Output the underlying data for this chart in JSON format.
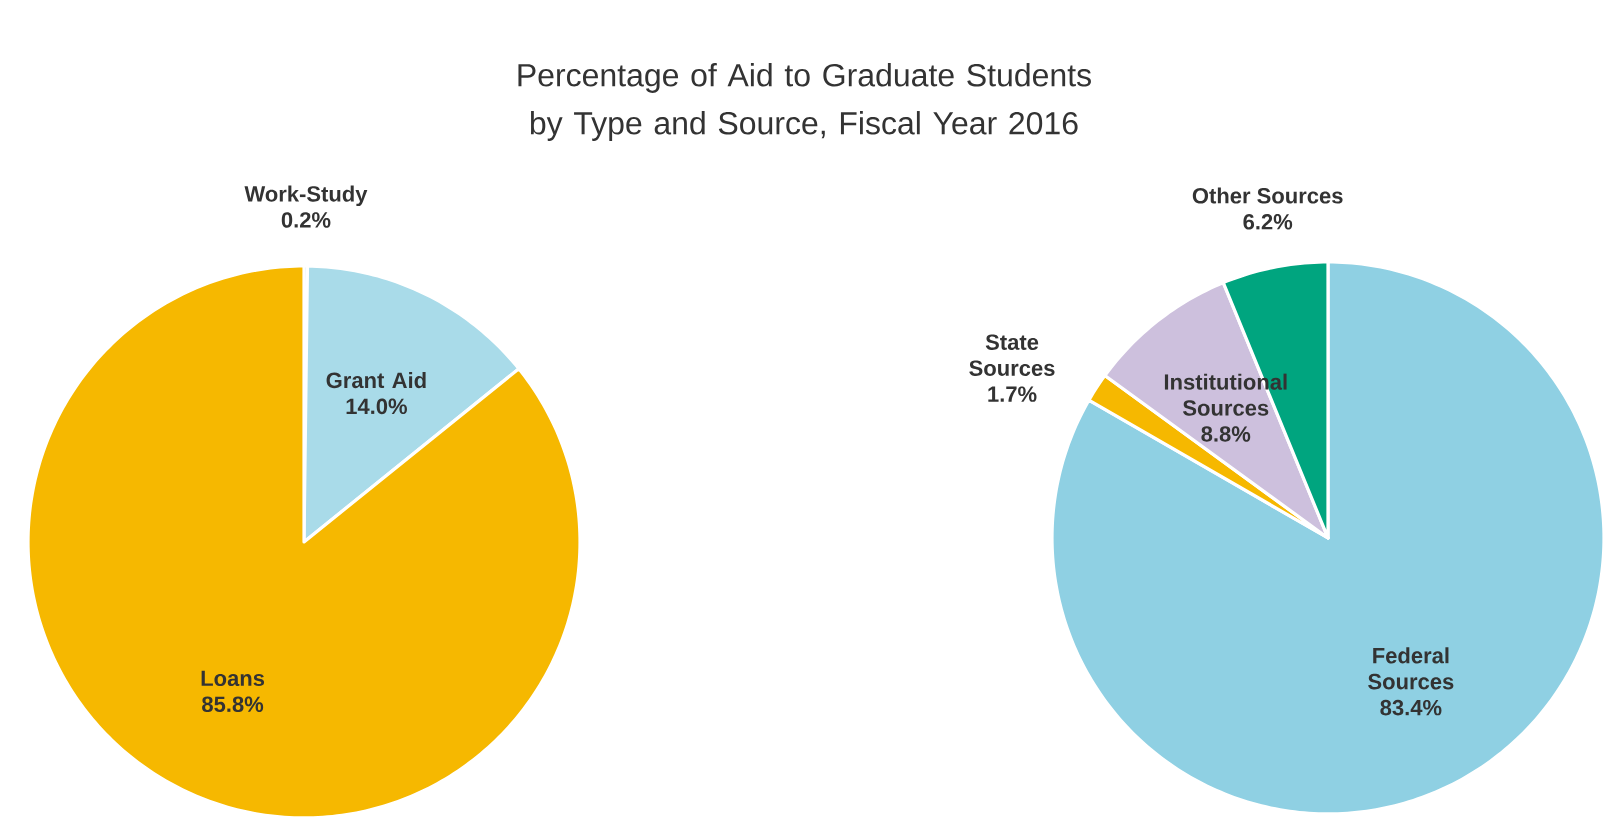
{
  "chart_data": [
    {
      "type": "pie",
      "title": "Percentage of Aid to Graduate Students by Type and Source, Fiscal Year 2016",
      "categories": [
        "Work-Study",
        "Grant Aid",
        "Loans"
      ],
      "values": [
        0.2,
        14.0,
        85.8
      ],
      "value_labels": [
        "0.2%",
        "14.0%",
        "85.8%"
      ],
      "colors": [
        "#4a8fb0",
        "#a9dbe9",
        "#f6b800"
      ]
    },
    {
      "type": "pie",
      "categories": [
        "Federal Sources",
        "State Sources",
        "Institutional Sources",
        "Other Sources"
      ],
      "values": [
        83.4,
        1.7,
        8.8,
        6.2
      ],
      "value_labels": [
        "83.4%",
        "1.7%",
        "8.8%",
        "6.2%"
      ],
      "colors": [
        "#8fd0e3",
        "#f6b800",
        "#cdc0dd",
        "#00a57f"
      ]
    }
  ]
}
